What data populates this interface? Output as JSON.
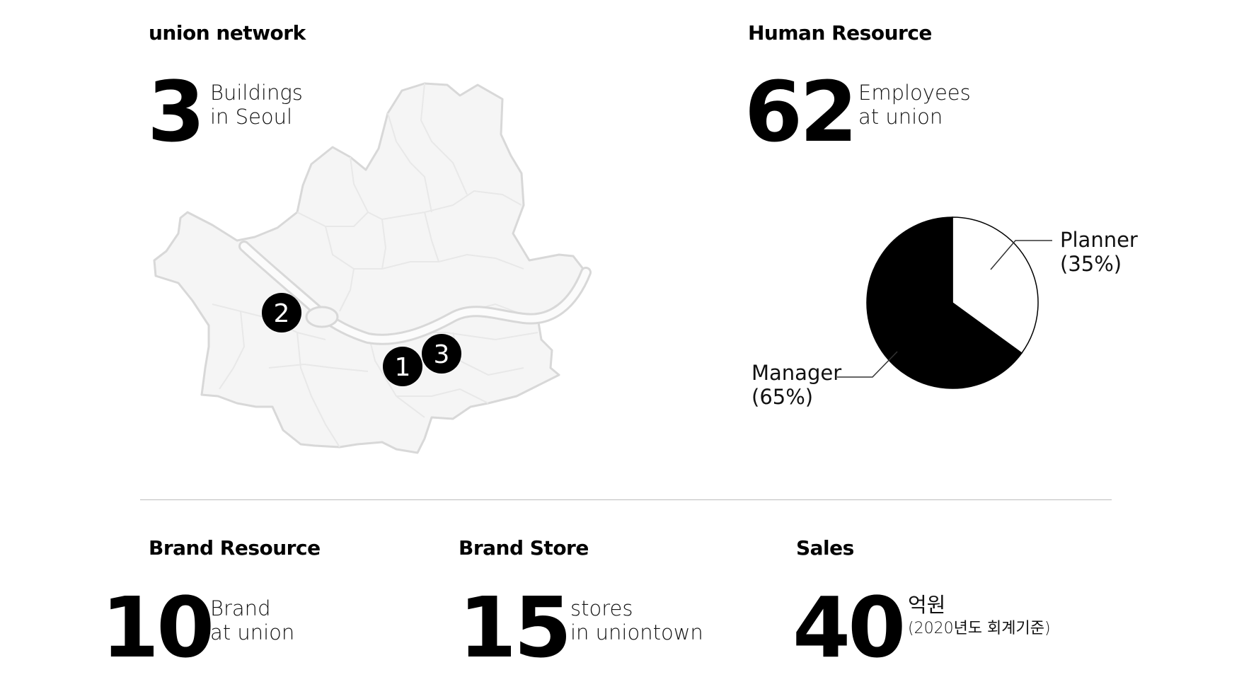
{
  "union_network": {
    "title": "union network",
    "count": "3",
    "desc_line1": "Buildings",
    "desc_line2": "in Seoul",
    "markers": [
      "1",
      "2",
      "3"
    ]
  },
  "human_resource": {
    "title": "Human Resource",
    "count": "62",
    "desc_line1": "Employees",
    "desc_line2": "at union"
  },
  "chart_data": {
    "type": "pie",
    "slices": [
      {
        "label": "Planner",
        "percent_label": "(35%)",
        "value": 35,
        "color": "#ffffff"
      },
      {
        "label": "Manager",
        "percent_label": "(65%)",
        "value": 65,
        "color": "#000000"
      }
    ]
  },
  "brand_resource": {
    "title": "Brand Resource",
    "count": "10",
    "desc_line1": "Brand",
    "desc_line2": "at union"
  },
  "brand_store": {
    "title": "Brand Store",
    "count": "15",
    "desc_line1": "stores",
    "desc_line2": "in uniontown"
  },
  "sales": {
    "title": "Sales",
    "count": "40",
    "desc_line1": "억원",
    "desc_line2": "(2020년도 회계기준)"
  }
}
